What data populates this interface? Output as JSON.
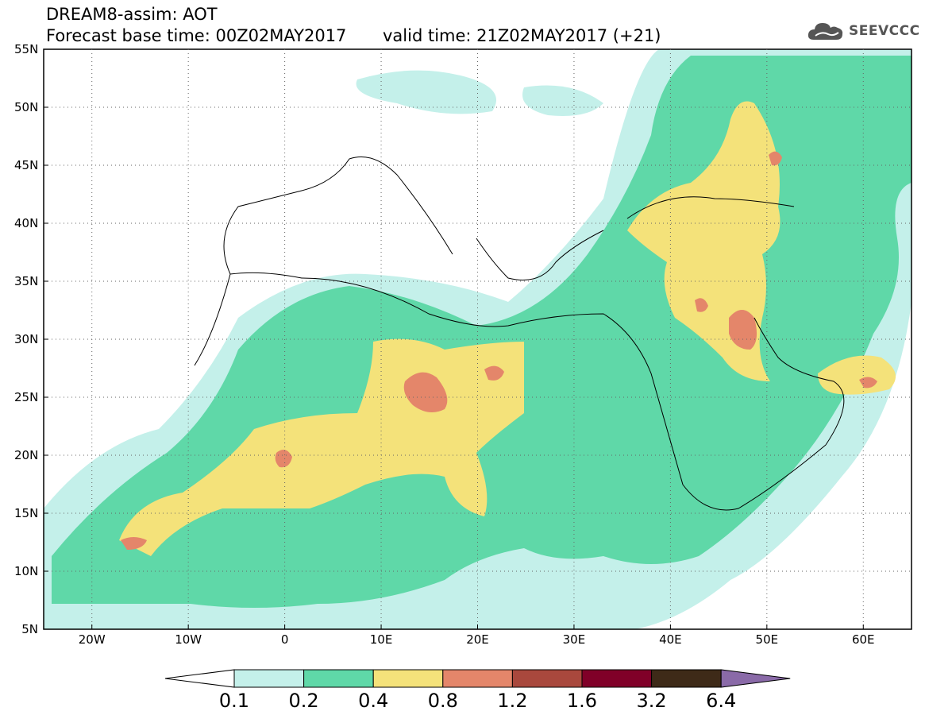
{
  "header": {
    "title": "DREAM8-assim: AOT",
    "forecast_base": "Forecast base time: 00Z02MAY2017",
    "valid_time": "valid time: 21Z02MAY2017 (+21)",
    "logo_text": "SEEVCCC",
    "logo_icon": "cloud-icon"
  },
  "map": {
    "projection": "lat-lon",
    "lon_range": [
      -25,
      65
    ],
    "lat_range": [
      5,
      55
    ],
    "lat_labels": [
      "55N",
      "50N",
      "45N",
      "40N",
      "35N",
      "30N",
      "25N",
      "20N",
      "15N",
      "10N",
      "5N"
    ],
    "lon_labels": [
      "20W",
      "10W",
      "0",
      "10E",
      "20E",
      "30E",
      "40E",
      "50E",
      "60E"
    ],
    "gridlines": "dotted"
  },
  "colorbar": {
    "levels": [
      "0.1",
      "0.2",
      "0.4",
      "0.8",
      "1.2",
      "1.6",
      "3.2",
      "6.4"
    ],
    "colors": [
      "#ffffff",
      "#c4f0ea",
      "#5fd8a8",
      "#f4e27a",
      "#e4866a",
      "#a9483d",
      "#800028",
      "#3e2a18",
      "#8a6aa8"
    ]
  }
}
